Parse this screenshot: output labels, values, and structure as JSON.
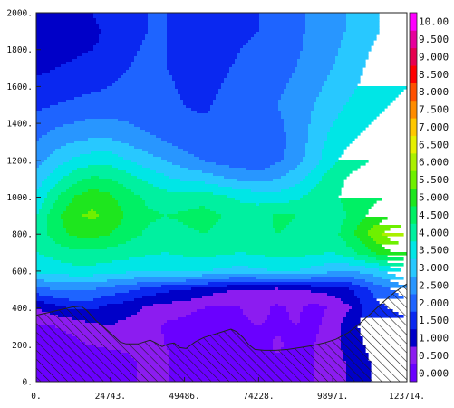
{
  "chart_data": {
    "type": "heatmap",
    "title": "",
    "xlabel": "",
    "ylabel": "",
    "xlim": [
      0,
      123714
    ],
    "ylim": [
      0,
      2000
    ],
    "x_ticks": [
      "0.",
      "24743.",
      "49486.",
      "74228.",
      "98971.",
      "123714."
    ],
    "x_tick_values": [
      0,
      24743,
      49486,
      74228,
      98971,
      123714
    ],
    "y_ticks": [
      "0.",
      "200.",
      "400.",
      "600.",
      "800.",
      "1000.",
      "1200.",
      "1400.",
      "1600.",
      "1800.",
      "2000."
    ],
    "y_tick_values": [
      0,
      200,
      400,
      600,
      800,
      1000,
      1200,
      1400,
      1600,
      1800,
      2000
    ],
    "colorbar": {
      "levels": [
        "0.000",
        "0.500",
        "1.000",
        "1.500",
        "2.000",
        "2.500",
        "3.000",
        "3.500",
        "4.000",
        "4.500",
        "5.000",
        "5.500",
        "6.000",
        "6.500",
        "7.000",
        "7.500",
        "8.000",
        "8.500",
        "9.000",
        "9.500",
        "10.00"
      ],
      "colors": [
        "#6a00ff",
        "#8c1cf0",
        "#0000c8",
        "#0a28f0",
        "#1e64ff",
        "#2896ff",
        "#28c8ff",
        "#00e6e6",
        "#00f0a0",
        "#00f064",
        "#1ee61e",
        "#6ef000",
        "#aaf000",
        "#e6f000",
        "#ffc800",
        "#ff8c00",
        "#ff5000",
        "#ff0000",
        "#e60050",
        "#e6009c",
        "#ff00ff"
      ]
    },
    "terrain": {
      "x": [
        0,
        4000,
        8000,
        12000,
        15000,
        17000,
        20000,
        23000,
        26000,
        28000,
        30000,
        34000,
        36000,
        38000,
        40000,
        42000,
        44000,
        46000,
        48000,
        50000,
        53000,
        56000,
        60000,
        63000,
        65000,
        67000,
        69000,
        71000,
        73000,
        76000,
        80000,
        84000,
        88000,
        92000,
        96000,
        100000,
        104000,
        108000,
        112000,
        116000,
        120000,
        123714
      ],
      "y": [
        360,
        375,
        390,
        405,
        410,
        385,
        330,
        290,
        245,
        215,
        205,
        205,
        215,
        225,
        210,
        190,
        205,
        210,
        185,
        180,
        215,
        240,
        260,
        275,
        285,
        270,
        240,
        200,
        175,
        170,
        170,
        175,
        185,
        195,
        210,
        230,
        265,
        315,
        375,
        435,
        490,
        530
      ]
    },
    "value_grid": {
      "x": [
        0,
        6186,
        12371,
        18557,
        24743,
        30928,
        37114,
        43300,
        49486,
        55671,
        61857,
        68043,
        74228,
        80414,
        86600,
        92786,
        98971,
        105157,
        111343,
        117528,
        123714
      ],
      "y": [
        0,
        100,
        200,
        300,
        400,
        500,
        600,
        700,
        800,
        900,
        1000,
        1100,
        1200,
        1300,
        1400,
        1500,
        1600,
        1700,
        1800,
        1900,
        2000
      ],
      "values": [
        [
          0.2,
          0.2,
          0.3,
          0.2,
          0.2,
          0.4,
          0.6,
          0.6,
          0.2,
          0.0,
          0.0,
          0.2,
          0.3,
          0.4,
          0.4,
          0.5,
          0.6,
          1.2,
          1.5,
          1.5,
          1.5
        ],
        [
          0.2,
          0.2,
          0.3,
          0.2,
          0.2,
          0.4,
          0.6,
          0.6,
          0.2,
          0.0,
          0.0,
          0.2,
          0.3,
          0.4,
          0.4,
          0.5,
          0.6,
          1.2,
          1.5,
          1.5,
          1.5
        ],
        [
          0.3,
          0.3,
          0.4,
          0.5,
          0.6,
          0.6,
          0.7,
          0.5,
          0.3,
          0.0,
          0.0,
          0.3,
          0.2,
          0.6,
          0.3,
          0.5,
          0.8,
          1.3,
          1.6,
          1.6,
          1.6
        ],
        [
          0.5,
          0.5,
          0.6,
          0.9,
          1.0,
          0.8,
          0.8,
          0.4,
          0.3,
          0.1,
          0.2,
          0.4,
          0.5,
          0.4,
          0.5,
          0.4,
          0.7,
          1.4,
          1.7,
          1.7,
          1.8
        ],
        [
          1.0,
          1.3,
          1.6,
          1.6,
          1.3,
          1.2,
          0.9,
          0.8,
          0.7,
          0.5,
          0.4,
          0.5,
          0.7,
          0.4,
          0.6,
          0.3,
          0.6,
          1.0,
          1.8,
          2.0,
          2.2
        ],
        [
          2.3,
          2.5,
          2.6,
          2.5,
          2.3,
          2.1,
          1.8,
          1.6,
          1.5,
          1.3,
          1.1,
          1.0,
          1.0,
          0.9,
          1.0,
          1.1,
          1.2,
          1.5,
          2.0,
          2.4,
          2.8
        ],
        [
          3.6,
          3.7,
          3.8,
          3.8,
          3.7,
          3.6,
          3.5,
          3.5,
          3.6,
          3.5,
          3.4,
          3.3,
          3.4,
          3.5,
          3.5,
          3.3,
          3.1,
          3.0,
          3.2,
          3.6,
          4.0
        ],
        [
          4.0,
          4.2,
          4.4,
          4.4,
          4.3,
          4.2,
          4.1,
          4.0,
          4.1,
          4.2,
          4.1,
          4.0,
          4.1,
          4.2,
          4.2,
          4.1,
          4.0,
          4.4,
          4.9,
          5.4,
          5.6
        ],
        [
          4.2,
          4.7,
          5.1,
          5.2,
          5.0,
          4.7,
          4.4,
          4.3,
          4.4,
          4.5,
          4.4,
          4.2,
          4.3,
          4.5,
          4.4,
          4.3,
          4.3,
          4.9,
          5.6,
          6.2,
          6.6
        ],
        [
          4.0,
          4.8,
          5.4,
          5.6,
          5.3,
          4.9,
          4.6,
          4.5,
          4.6,
          4.7,
          4.5,
          4.3,
          4.3,
          4.6,
          4.5,
          4.3,
          4.2,
          4.6,
          5.1,
          5.4,
          5.4
        ],
        [
          3.6,
          4.4,
          5.0,
          5.3,
          5.1,
          4.7,
          4.4,
          4.2,
          4.2,
          4.3,
          4.1,
          3.9,
          3.8,
          3.7,
          3.9,
          4.2,
          4.4,
          4.7,
          4.9,
          5.0,
          5.0
        ],
        [
          3.2,
          3.8,
          4.3,
          4.6,
          4.5,
          4.2,
          3.9,
          3.6,
          3.4,
          3.3,
          3.1,
          2.9,
          2.8,
          3.0,
          3.3,
          3.8,
          4.3,
          4.6,
          4.8,
          4.8,
          4.8
        ],
        [
          2.8,
          3.2,
          3.6,
          3.8,
          3.8,
          3.5,
          3.2,
          3.0,
          2.7,
          2.5,
          2.3,
          2.2,
          2.1,
          2.4,
          2.8,
          3.3,
          3.9,
          4.3,
          4.5,
          4.5,
          4.5
        ],
        [
          2.5,
          2.8,
          3.0,
          3.1,
          3.1,
          2.9,
          2.7,
          2.5,
          2.3,
          2.2,
          2.1,
          2.0,
          2.0,
          2.3,
          2.7,
          3.2,
          3.7,
          4.0,
          4.2,
          4.3,
          4.3
        ],
        [
          2.2,
          2.4,
          2.5,
          2.6,
          2.6,
          2.5,
          2.3,
          2.2,
          2.1,
          2.1,
          2.1,
          2.0,
          2.1,
          2.4,
          2.7,
          3.1,
          3.5,
          3.8,
          4.0,
          4.1,
          4.2
        ],
        [
          1.9,
          2.0,
          2.1,
          2.2,
          2.2,
          2.3,
          2.4,
          2.2,
          2.0,
          1.9,
          2.1,
          2.3,
          2.3,
          2.5,
          2.7,
          3.0,
          3.3,
          3.6,
          3.9,
          4.0,
          4.1
        ],
        [
          1.6,
          1.7,
          1.8,
          1.9,
          2.0,
          2.2,
          2.3,
          2.1,
          1.9,
          1.8,
          2.0,
          2.2,
          2.3,
          2.4,
          2.6,
          2.9,
          3.1,
          3.4,
          3.7,
          3.9,
          4.0
        ],
        [
          1.4,
          1.5,
          1.6,
          1.7,
          1.8,
          2.0,
          2.2,
          2.0,
          1.9,
          1.8,
          1.9,
          2.1,
          2.2,
          2.3,
          2.5,
          2.8,
          3.0,
          3.3,
          3.6,
          3.8,
          3.9
        ],
        [
          1.3,
          1.3,
          1.4,
          1.5,
          1.6,
          1.9,
          2.1,
          2.0,
          1.8,
          1.7,
          1.8,
          2.0,
          2.1,
          2.3,
          2.4,
          2.7,
          2.9,
          3.2,
          3.5,
          3.7,
          3.8
        ],
        [
          1.3,
          1.3,
          1.3,
          1.4,
          1.6,
          1.8,
          2.0,
          2.0,
          1.8,
          1.7,
          1.8,
          1.9,
          2.0,
          2.2,
          2.4,
          2.6,
          2.8,
          3.1,
          3.4,
          3.6,
          3.8
        ],
        [
          1.4,
          1.4,
          1.4,
          1.5,
          1.7,
          1.9,
          2.0,
          2.0,
          1.9,
          1.8,
          1.8,
          1.9,
          2.0,
          2.2,
          2.4,
          2.6,
          2.8,
          3.1,
          3.4,
          3.6,
          3.8
        ]
      ]
    },
    "grid": false,
    "legend": "right colorbar"
  }
}
